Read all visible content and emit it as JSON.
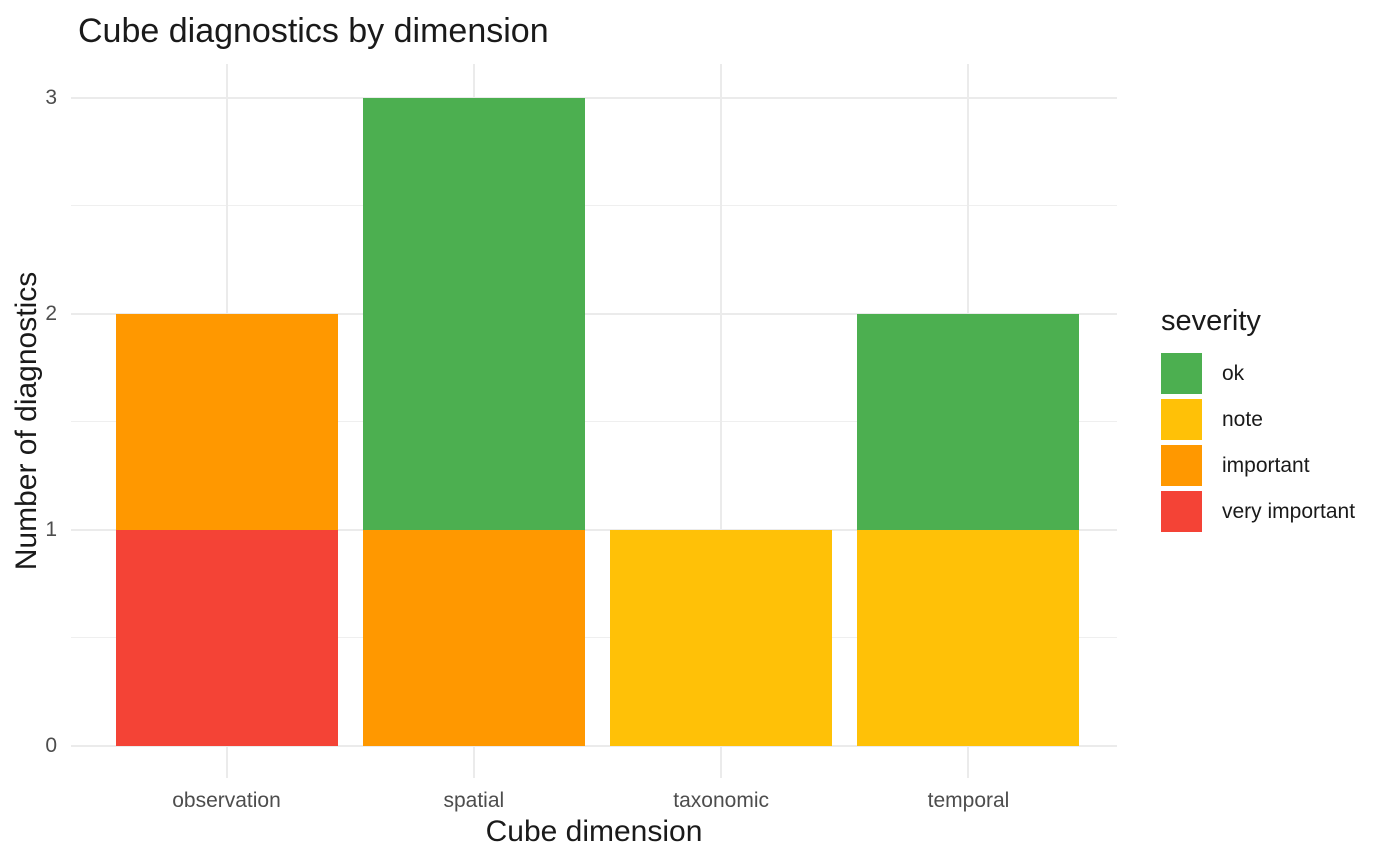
{
  "title": "Cube diagnostics by dimension",
  "x_axis": {
    "label": "Cube dimension",
    "ticks": [
      "observation",
      "spatial",
      "taxonomic",
      "temporal"
    ]
  },
  "y_axis": {
    "label": "Number of diagnostics",
    "ticks": [
      "0",
      "1",
      "2",
      "3"
    ]
  },
  "legend": {
    "title": "severity",
    "position": "right",
    "items": [
      {
        "label": "ok",
        "color": "#4CAF50"
      },
      {
        "label": "note",
        "color": "#FFC107"
      },
      {
        "label": "important",
        "color": "#FF9800"
      },
      {
        "label": "very important",
        "color": "#F44336"
      }
    ]
  },
  "chart_data": {
    "type": "bar",
    "stacked": true,
    "title": "Cube diagnostics by dimension",
    "xlabel": "Cube dimension",
    "ylabel": "Number of diagnostics",
    "categories": [
      "observation",
      "spatial",
      "taxonomic",
      "temporal"
    ],
    "series": [
      {
        "name": "ok",
        "color": "#4CAF50",
        "values": [
          0,
          2,
          0,
          1
        ]
      },
      {
        "name": "note",
        "color": "#FFC107",
        "values": [
          0,
          0,
          1,
          1
        ]
      },
      {
        "name": "important",
        "color": "#FF9800",
        "values": [
          1,
          1,
          0,
          0
        ]
      },
      {
        "name": "very important",
        "color": "#F44336",
        "values": [
          1,
          0,
          0,
          0
        ]
      }
    ],
    "totals": [
      2,
      3,
      1,
      2
    ],
    "stack_order_bottom_to_top": [
      "very important",
      "important",
      "note",
      "ok"
    ],
    "ylim": [
      0,
      3
    ],
    "y_major_ticks": [
      0,
      1,
      2,
      3
    ],
    "y_minor_gridlines": [
      0.5,
      1.5,
      2.5
    ],
    "grid": true,
    "legend_position": "right",
    "background": "#FFFFFF",
    "gridline_color": "#EBEBEB",
    "tick_label_color": "#4D4D4D"
  }
}
